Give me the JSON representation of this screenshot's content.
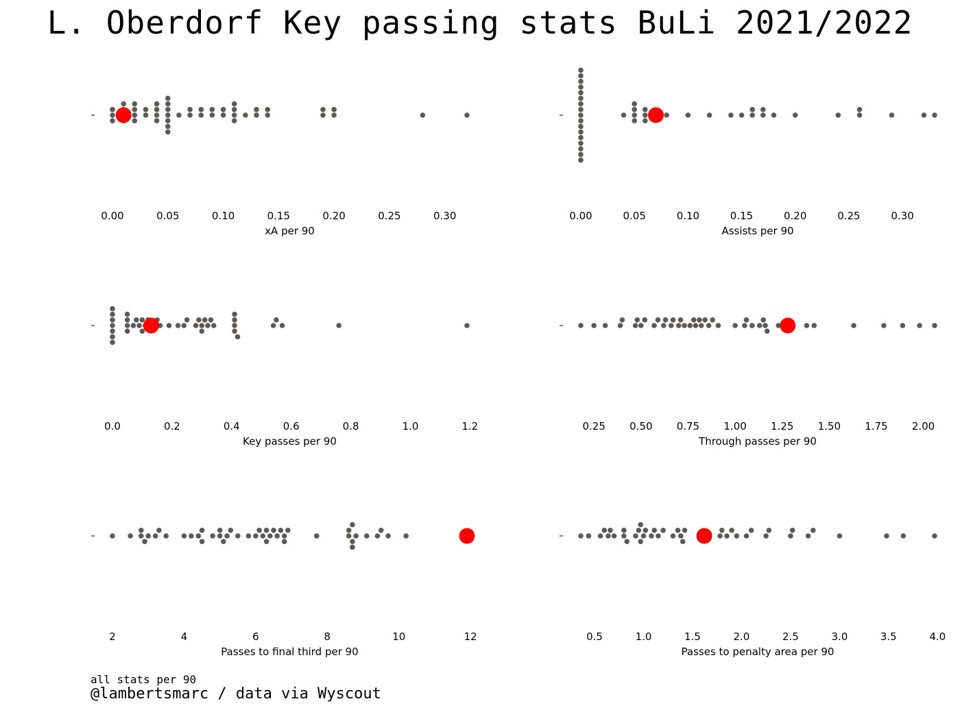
{
  "title": "L. Oberdorf Key passing stats BuLi 2021/2022",
  "footer": {
    "note": "all stats per 90",
    "credit": "@lambertsmarc / data via Wyscout"
  },
  "colors": {
    "dots": "#5b5a56",
    "highlight": "#ff0000"
  },
  "chart_data": [
    {
      "type": "scatter",
      "style": "swarm",
      "xlabel": "xA per 90",
      "xlim": [
        0,
        0.32
      ],
      "ticks": [
        "0.00",
        "0.05",
        "0.10",
        "0.15",
        "0.20",
        "0.25",
        "0.30"
      ],
      "highlight": 0.01,
      "values": [
        0,
        0,
        0,
        0.01,
        0.01,
        0.01,
        0.01,
        0.02,
        0.02,
        0.02,
        0.02,
        0.03,
        0.03,
        0.04,
        0.04,
        0.04,
        0.04,
        0.05,
        0.05,
        0.05,
        0.05,
        0.05,
        0.05,
        0.05,
        0.06,
        0.07,
        0.07,
        0.08,
        0.08,
        0.09,
        0.09,
        0.1,
        0.1,
        0.11,
        0.11,
        0.11,
        0.11,
        0.12,
        0.13,
        0.13,
        0.14,
        0.14,
        0.19,
        0.19,
        0.2,
        0.2,
        0.28,
        0.32
      ]
    },
    {
      "type": "scatter",
      "style": "swarm",
      "xlabel": "Assists per 90",
      "xlim": [
        0,
        0.33
      ],
      "ticks": [
        "0.00",
        "0.05",
        "0.10",
        "0.15",
        "0.20",
        "0.25",
        "0.30"
      ],
      "highlight": 0.07,
      "values": [
        0,
        0,
        0,
        0,
        0,
        0,
        0,
        0,
        0,
        0,
        0,
        0,
        0,
        0,
        0,
        0,
        0,
        0.04,
        0.05,
        0.05,
        0.05,
        0.05,
        0.06,
        0.06,
        0.06,
        0.07,
        0.08,
        0.1,
        0.12,
        0.14,
        0.15,
        0.16,
        0.16,
        0.17,
        0.17,
        0.18,
        0.2,
        0.24,
        0.26,
        0.26,
        0.29,
        0.32,
        0.33
      ]
    },
    {
      "type": "scatter",
      "style": "swarm",
      "xlabel": "Key passes per 90",
      "xlim": [
        0,
        1.19
      ],
      "ticks": [
        "0.0",
        "0.2",
        "0.4",
        "0.6",
        "0.8",
        "1.0",
        "1.2"
      ],
      "highlight": 0.13,
      "values": [
        0,
        0,
        0,
        0,
        0,
        0,
        0,
        0.05,
        0.05,
        0.05,
        0.05,
        0.07,
        0.08,
        0.09,
        0.1,
        0.1,
        0.11,
        0.12,
        0.14,
        0.15,
        0.16,
        0.19,
        0.22,
        0.24,
        0.25,
        0.28,
        0.29,
        0.3,
        0.3,
        0.31,
        0.32,
        0.33,
        0.34,
        0.41,
        0.41,
        0.41,
        0.41,
        0.42,
        0.54,
        0.55,
        0.57,
        0.76,
        1.19
      ]
    },
    {
      "type": "scatter",
      "style": "swarm",
      "xlabel": "Through passes per 90",
      "xlim": [
        0.18,
        2.06
      ],
      "ticks": [
        "0.25",
        "0.50",
        "0.75",
        "1.00",
        "1.25",
        "1.50",
        "1.75",
        "2.00"
      ],
      "highlight": 1.28,
      "values": [
        0.18,
        0.25,
        0.31,
        0.39,
        0.4,
        0.47,
        0.48,
        0.5,
        0.52,
        0.57,
        0.59,
        0.62,
        0.63,
        0.66,
        0.67,
        0.7,
        0.71,
        0.73,
        0.76,
        0.78,
        0.79,
        0.81,
        0.82,
        0.84,
        0.86,
        0.88,
        0.91,
        1.0,
        1.05,
        1.06,
        1.09,
        1.13,
        1.15,
        1.16,
        1.17,
        1.23,
        1.38,
        1.42,
        1.63,
        1.79,
        1.89,
        1.98,
        2.06
      ]
    },
    {
      "type": "scatter",
      "style": "swarm",
      "xlabel": "Passes to final third per 90",
      "xlim": [
        2,
        11.9
      ],
      "ticks": [
        "2",
        "4",
        "6",
        "8",
        "10",
        "12"
      ],
      "highlight": 11.9,
      "values": [
        2.0,
        2.5,
        2.8,
        2.8,
        2.9,
        3.0,
        3.2,
        3.3,
        3.5,
        4.0,
        4.2,
        4.4,
        4.5,
        4.5,
        4.8,
        5.0,
        5.0,
        5.1,
        5.2,
        5.3,
        5.5,
        5.8,
        6.0,
        6.1,
        6.2,
        6.3,
        6.3,
        6.4,
        6.5,
        6.6,
        6.7,
        6.8,
        6.8,
        6.9,
        7.7,
        8.6,
        8.6,
        8.7,
        8.7,
        8.7,
        8.8,
        9.1,
        9.4,
        9.5,
        9.7,
        10.2
      ]
    },
    {
      "type": "scatter",
      "style": "swarm",
      "xlabel": "Passes to penalty area per 90",
      "xlim": [
        0.36,
        3.97
      ],
      "ticks": [
        "0.5",
        "1.0",
        "1.5",
        "2.0",
        "2.5",
        "3.0",
        "3.5",
        "4.0"
      ],
      "highlight": 1.62,
      "values": [
        0.36,
        0.44,
        0.56,
        0.6,
        0.64,
        0.66,
        0.7,
        0.8,
        0.8,
        0.83,
        0.92,
        0.95,
        0.97,
        0.97,
        1.0,
        1.02,
        1.08,
        1.11,
        1.15,
        1.2,
        1.3,
        1.35,
        1.38,
        1.4,
        1.42,
        1.78,
        1.8,
        1.85,
        1.9,
        1.95,
        2.05,
        2.1,
        2.25,
        2.28,
        2.5,
        2.52,
        2.68,
        2.73,
        3.0,
        3.48,
        3.65,
        3.97
      ]
    }
  ]
}
